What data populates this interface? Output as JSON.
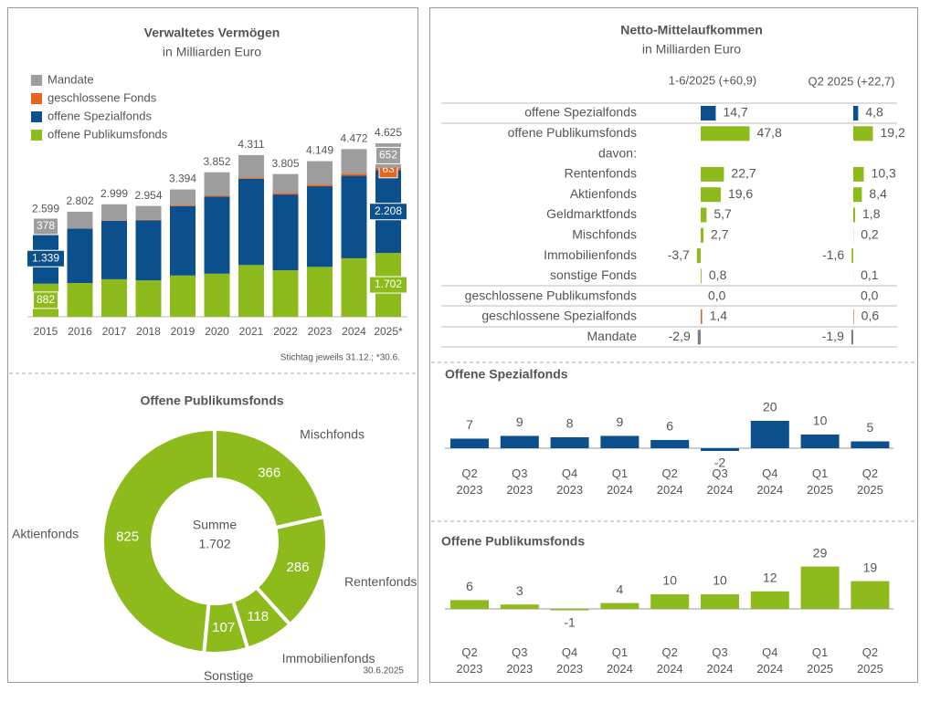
{
  "chart_data": [
    {
      "type": "stacked_bar",
      "title": "Verwaltetes Vermögen",
      "subtitle": "in Milliarden Euro",
      "categories": [
        "2015",
        "2016",
        "2017",
        "2018",
        "2019",
        "2020",
        "2021",
        "2022",
        "2023",
        "2024",
        "2025*"
      ],
      "series": [
        {
          "name": "Mandate",
          "color": "#9d9d9d",
          "values": [
            378,
            447,
            429,
            372,
            424,
            627,
            601,
            505,
            624,
            657,
            652
          ],
          "value_labels": [
            "378",
            null,
            null,
            null,
            null,
            null,
            null,
            null,
            null,
            null,
            "652"
          ]
        },
        {
          "name": "geschlossene Fonds",
          "color": "#e8641e",
          "values": [
            0,
            5,
            10,
            12,
            20,
            25,
            30,
            40,
            45,
            55,
            63
          ],
          "value_labels": [
            null,
            null,
            null,
            null,
            null,
            null,
            null,
            null,
            null,
            null,
            "63"
          ]
        },
        {
          "name": "offene Spezialfonds",
          "color": "#0b4f8c",
          "values": [
            1339,
            1450,
            1560,
            1600,
            1850,
            2050,
            2300,
            2020,
            2150,
            2200,
            2208
          ],
          "value_labels": [
            "1.339",
            null,
            null,
            null,
            null,
            null,
            null,
            null,
            null,
            null,
            "2.208"
          ]
        },
        {
          "name": "offene Publikumsfonds",
          "color": "#8dbb1b",
          "values": [
            882,
            900,
            1000,
            970,
            1100,
            1150,
            1380,
            1240,
            1330,
            1560,
            1702
          ],
          "value_labels": [
            "882",
            null,
            null,
            null,
            null,
            null,
            null,
            null,
            null,
            null,
            "1.702"
          ]
        }
      ],
      "totals": {
        "values": [
          2599,
          2802,
          2999,
          2954,
          3394,
          3852,
          4311,
          3805,
          4149,
          4472,
          4625
        ],
        "value_labels": [
          "2.599",
          "2.802",
          "2.999",
          "2.954",
          "3.394",
          "3.852",
          "4.311",
          "3.805",
          "4.149",
          "4.472",
          "4.625"
        ]
      },
      "note": "Stichtag jeweils 31.12.; *30.6."
    },
    {
      "type": "pie",
      "title": "Offene Publikumsfonds",
      "categories": [
        "Mischfonds",
        "Rentenfonds",
        "Immobilienfonds",
        "Sonstige",
        "Aktienfonds"
      ],
      "values": [
        366,
        286,
        118,
        107,
        825
      ],
      "color": "#8dbb1b",
      "donut": true,
      "center_label": "Summe",
      "center_value": 1702,
      "center_value_label": "1.702",
      "date": "30.6.2025"
    },
    {
      "type": "bar",
      "orientation": "horizontal",
      "title": "Netto-Mittelaufkommen",
      "subtitle": "in Milliarden Euro",
      "categories": [
        "offene Spezialfonds",
        "offene Publikumsfonds",
        "davon:",
        "Rentenfonds",
        "Aktienfonds",
        "Geldmarktfonds",
        "Mischfonds",
        "Immobilienfonds",
        "sonstige Fonds",
        "geschlossene Publikumsfonds",
        "geschlossene Spezialfonds",
        "Mandate"
      ],
      "colors": [
        "#0b4f8c",
        "#8dbb1b",
        null,
        "#8dbb1b",
        "#8dbb1b",
        "#8dbb1b",
        "#8dbb1b",
        "#8dbb1b",
        "#8dbb1b",
        "#9d9d9d",
        "#e8641e",
        "#7f7f7f"
      ],
      "series": [
        {
          "name": "1-6/2025 (+60,9)",
          "values": [
            14.7,
            47.8,
            null,
            22.7,
            19.6,
            5.7,
            2.7,
            -3.7,
            0.8,
            0.0,
            1.4,
            -2.9
          ],
          "value_labels": [
            "14,7",
            "47,8",
            null,
            "22,7",
            "19,6",
            "5,7",
            "2,7",
            "-3,7",
            "0,8",
            "0,0",
            "1,4",
            "-2,9"
          ]
        },
        {
          "name": "Q2 2025 (+22,7)",
          "values": [
            4.8,
            19.2,
            null,
            10.3,
            8.4,
            1.8,
            0.2,
            -1.6,
            0.1,
            0.0,
            0.6,
            -1.9
          ],
          "value_labels": [
            "4,8",
            "19,2",
            null,
            "10,3",
            "8,4",
            "1,8",
            "0,2",
            "-1,6",
            "0,1",
            "0,0",
            "0,6",
            "-1,9"
          ]
        }
      ]
    },
    {
      "type": "bar",
      "title": "Offene Spezialfonds",
      "color": "#0b4f8c",
      "categories": [
        "Q2 2023",
        "Q3 2023",
        "Q4 2023",
        "Q1 2024",
        "Q2 2024",
        "Q3 2024",
        "Q4 2024",
        "Q1 2025",
        "Q2 2025"
      ],
      "values": [
        7,
        9,
        8,
        9,
        6,
        -2,
        20,
        10,
        5
      ]
    },
    {
      "type": "bar",
      "title": "Offene Publikumsfonds",
      "color": "#8dbb1b",
      "categories": [
        "Q2 2023",
        "Q3 2023",
        "Q4 2023",
        "Q1 2024",
        "Q2 2024",
        "Q3 2024",
        "Q4 2024",
        "Q1 2025",
        "Q2 2025"
      ],
      "values": [
        6,
        3,
        -1,
        4,
        10,
        10,
        12,
        29,
        19
      ]
    }
  ]
}
